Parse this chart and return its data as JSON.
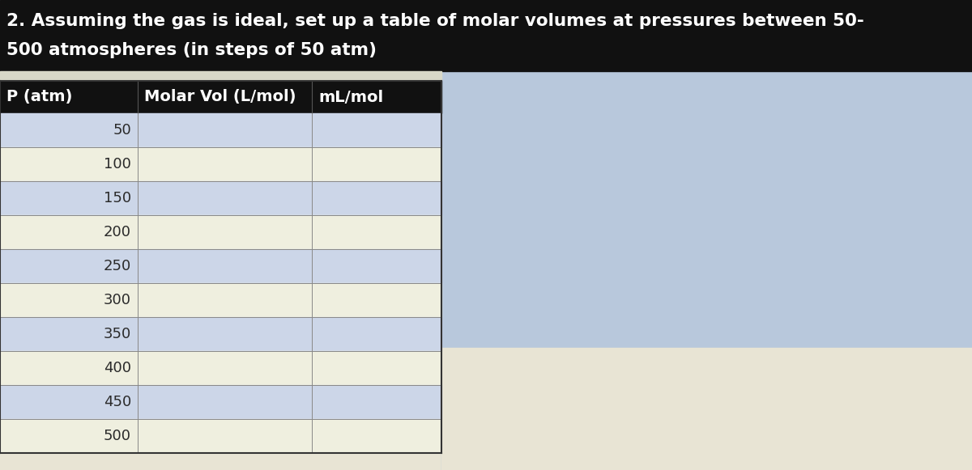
{
  "title_line1": "2. Assuming the gas is ideal, set up a table of molar volumes at pressures between 50-",
  "title_line2": "500 atmospheres (in steps of 50 atm)",
  "title_bg_color": "#111111",
  "title_text_color": "#ffffff",
  "title_fontsize": 15.5,
  "col_headers": [
    "P (atm)",
    "Molar Vol (L/mol)",
    "mL/mol"
  ],
  "header_bg_color": "#111111",
  "header_text_color": "#ffffff",
  "header_fontsize": 14,
  "pressures": [
    50,
    100,
    150,
    200,
    250,
    300,
    350,
    400,
    450,
    500
  ],
  "row_color_odd": "#ccd6e8",
  "row_color_even": "#efefdf",
  "p_col_text_color": "#2a2a2a",
  "row_fontsize": 13,
  "right_bg_color_top": "#b8c8dc",
  "right_bg_color": "#c0cedd",
  "bottom_bg_color": "#e8e4d4",
  "gap_color": "#d8d8c8",
  "fig_bg_color": "#c0cedd"
}
